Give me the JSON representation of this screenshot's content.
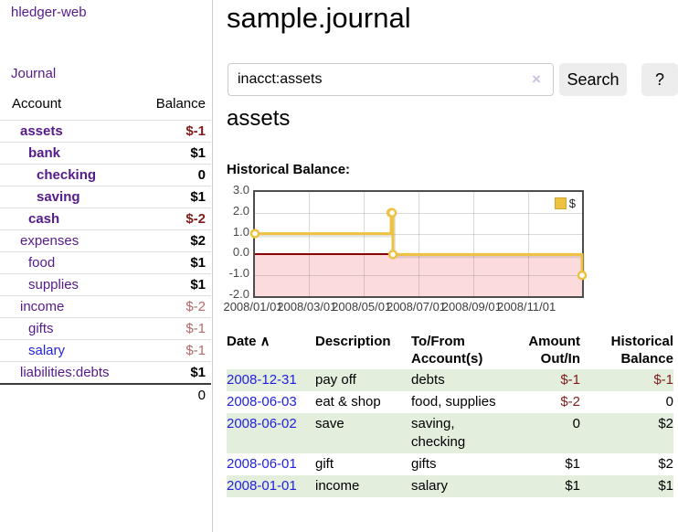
{
  "app": {
    "brand": "hledger-web",
    "nav_journal": "Journal"
  },
  "colors": {
    "accent_purple": "#551a8b",
    "link_blue": "#2222dd",
    "negative_strong": "#7f1c1c",
    "negative_soft": "#b36a6a",
    "row_stripe_green": "#e3eedd",
    "chart_series_yellow": "#edc240",
    "chart_negative_pink": "#fbdbdb",
    "chart_zero_line": "#8b0000"
  },
  "sidebar": {
    "header": {
      "account": "Account",
      "balance": "Balance"
    },
    "accounts": [
      {
        "name": "assets",
        "indent": 0,
        "bold": true,
        "balance": "$-1",
        "balance_tone": "negative"
      },
      {
        "name": "bank",
        "indent": 1,
        "bold": true,
        "balance": "$1",
        "balance_tone": "normal"
      },
      {
        "name": "checking",
        "indent": 2,
        "bold": true,
        "balance": "0",
        "balance_tone": "normal"
      },
      {
        "name": "saving",
        "indent": 2,
        "bold": true,
        "balance": "$1",
        "balance_tone": "normal"
      },
      {
        "name": "cash",
        "indent": 1,
        "bold": true,
        "balance": "$-2",
        "balance_tone": "negative"
      },
      {
        "name": "expenses",
        "indent": 0,
        "bold": false,
        "balance": "$2",
        "balance_tone": "normal"
      },
      {
        "name": "food",
        "indent": 1,
        "bold": false,
        "balance": "$1",
        "balance_tone": "normal"
      },
      {
        "name": "supplies",
        "indent": 1,
        "bold": false,
        "balance": "$1",
        "balance_tone": "normal"
      },
      {
        "name": "income",
        "indent": 0,
        "bold": false,
        "balance": "$-2",
        "balance_tone": "negative-soft"
      },
      {
        "name": "gifts",
        "indent": 1,
        "bold": false,
        "balance": "$-1",
        "balance_tone": "negative-soft"
      },
      {
        "name": "salary",
        "indent": 1,
        "bold": false,
        "balance": "$-1",
        "balance_tone": "negative-soft",
        "link_tone": "unvisited"
      },
      {
        "name": "liabilities:debts",
        "indent": 0,
        "bold": false,
        "balance": "$1",
        "balance_tone": "normal"
      }
    ],
    "total": "0"
  },
  "header": {
    "title": "sample.journal"
  },
  "search": {
    "value": "inacct:assets",
    "clear_icon": "×",
    "button_label": "Search",
    "help_label": "?"
  },
  "main": {
    "account_title": "assets",
    "chart_label": "Historical Balance:"
  },
  "chart_data": {
    "type": "line",
    "subtype": "step-line-with-markers",
    "title": "Historical Balance:",
    "xrange": [
      "2008-01-01",
      "2008-12-31"
    ],
    "ylim": [
      -2,
      3
    ],
    "yticks": [
      3,
      2,
      1,
      0,
      -1,
      -2
    ],
    "xticks": [
      {
        "date": "2008-01-01",
        "label": "2008/01/01"
      },
      {
        "date": "2008-03-01",
        "label": "2008/03/01"
      },
      {
        "date": "2008-05-01",
        "label": "2008/05/01"
      },
      {
        "date": "2008-07-01",
        "label": "2008/07/01"
      },
      {
        "date": "2008-09-01",
        "label": "2008/09/01"
      },
      {
        "date": "2008-11-01",
        "label": "2008/11/01"
      }
    ],
    "grid": true,
    "legend": {
      "position": "top-right",
      "label": "$"
    },
    "series": [
      {
        "name": "$",
        "color": "#edc240",
        "marker_fill": "#ffffff",
        "points": [
          [
            "2008-01-01",
            1
          ],
          [
            "2008-06-01",
            2
          ],
          [
            "2008-06-02",
            2
          ],
          [
            "2008-06-03",
            0
          ],
          [
            "2008-12-31",
            -1
          ]
        ]
      }
    ],
    "negative_region_color": "#fbdbdb",
    "zero_line_color": "#8b0000"
  },
  "register": {
    "columns": [
      {
        "lines": [
          "Date"
        ],
        "sort_glyph": "∧",
        "align": "left"
      },
      {
        "lines": [
          "Description"
        ],
        "align": "left"
      },
      {
        "lines": [
          "To/From",
          "Account(s)"
        ],
        "align": "left"
      },
      {
        "lines": [
          "Amount",
          "Out/In"
        ],
        "align": "right"
      },
      {
        "lines": [
          "Historical",
          "Balance"
        ],
        "align": "right"
      }
    ],
    "rows": [
      {
        "date": "2008-12-31",
        "description": "pay off",
        "accounts": "debts",
        "amount": "$-1",
        "balance": "$-1"
      },
      {
        "date": "2008-06-03",
        "description": "eat & shop",
        "accounts": "food, supplies",
        "amount": "$-2",
        "balance": "0"
      },
      {
        "date": "2008-06-02",
        "description": "save",
        "accounts": "saving, checking",
        "amount": "0",
        "balance": "$2"
      },
      {
        "date": "2008-06-01",
        "description": "gift",
        "accounts": "gifts",
        "amount": "$1",
        "balance": "$2"
      },
      {
        "date": "2008-01-01",
        "description": "income",
        "accounts": "salary",
        "amount": "$1",
        "balance": "$1"
      }
    ]
  }
}
